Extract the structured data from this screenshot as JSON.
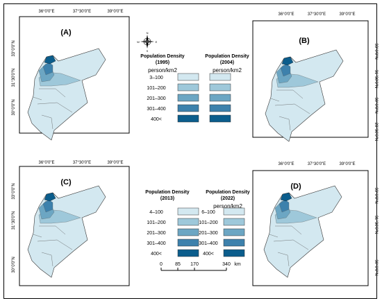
{
  "panels": [
    {
      "label": "(A)",
      "x_ticks": [
        "36°0'0\"E",
        "37°30'0\"E",
        "39°0'0\"E"
      ],
      "y_ticks": [
        "33°0'0\"N",
        "31°30'0\"N",
        "30°0'0\"N"
      ]
    },
    {
      "label": "(B)",
      "x_ticks": [
        "36°0'0\"E",
        "37°30'0\"E",
        "39°0'0\"E"
      ],
      "y_ticks": [
        "33°0'0\"N",
        "31°30'0\"N",
        "30°0'0\"N",
        "28°30'0\"N"
      ]
    },
    {
      "label": "(C)",
      "x_ticks": [
        "36°0'0\"E",
        "37°30'0\"E",
        "39°0'0\"E"
      ],
      "y_ticks": [
        "33°0'0\"N",
        "31°30'0\"N",
        "30°0'0\"N"
      ]
    },
    {
      "label": "(D)",
      "x_ticks": [
        "36°0'0\"E",
        "37°30'0\"E",
        "39°0'0\"E"
      ],
      "y_ticks": [
        "33°0'0\"N",
        "31°30'0\"N",
        "30°0'0\"N"
      ]
    }
  ],
  "legends": [
    {
      "title_1": "Population Density",
      "title_2": "(1995)",
      "unit": "person/km2",
      "classes": [
        "3–100",
        "101–200",
        "201–300",
        "301–400",
        "400<"
      ]
    },
    {
      "title_1": "Population Density",
      "title_2": "(2004)",
      "unit": "person/km2",
      "classes": [
        "",
        "",
        "",
        "",
        ""
      ]
    },
    {
      "title_1": "Population Density",
      "title_2": "(2013)",
      "unit": "",
      "classes": [
        "4–100",
        "101–200",
        "201–300",
        "301–400",
        "400<"
      ]
    },
    {
      "title_1": "Population Density",
      "title_2": "(2022)",
      "unit": "person/km2",
      "classes": [
        "6–100",
        "101–200",
        "201–300",
        "301–400",
        "400<"
      ]
    }
  ],
  "class_colors": [
    "#d3e8f0",
    "#9ec8da",
    "#6ca6c3",
    "#3d81ac",
    "#0b5d8c"
  ],
  "north_arrow": {
    "n": "N",
    "s": "S",
    "e": "E",
    "w": "W"
  },
  "scale_bar": {
    "ticks": [
      "0",
      "85",
      "170",
      "340"
    ],
    "unit": "km"
  }
}
